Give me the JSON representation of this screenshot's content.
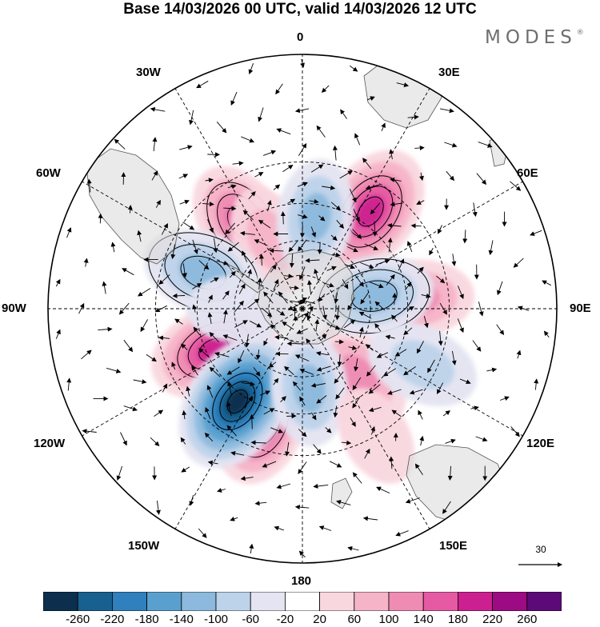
{
  "title": "Base 14/03/2026 00 UTC, valid 14/03/2026 12 UTC",
  "brand": "MODES",
  "brand_mark": "®",
  "longitude_labels": {
    "lon_0": "0",
    "lon_30e": "30E",
    "lon_60e": "60E",
    "lon_90e": "90E",
    "lon_120e": "120E",
    "lon_150e": "150E",
    "lon_180": "180",
    "lon_150w": "150W",
    "lon_120w": "120W",
    "lon_90w": "90W",
    "lon_60w": "60W",
    "lon_30w": "30W"
  },
  "vector_reference": {
    "value": "30"
  },
  "colorbar": {
    "colors": [
      "#0b2f4d",
      "#18608f",
      "#2f80bd",
      "#5aa0cf",
      "#8cb9dd",
      "#bdd3ea",
      "#e4e4f2",
      "#ffffff",
      "#f9d7df",
      "#f6b4c8",
      "#ef8cb3",
      "#e55aa2",
      "#cc2090",
      "#9c0b83",
      "#5c0a77"
    ],
    "tick_labels": [
      "-260",
      "-220",
      "-180",
      "-140",
      "-100",
      "-60",
      "-20",
      "20",
      "60",
      "100",
      "140",
      "180",
      "220",
      "260"
    ]
  },
  "anomaly_cells": [
    {
      "lon": 35,
      "lat": -40,
      "value": 210
    },
    {
      "lon": -35,
      "lat": -45,
      "value": 150
    },
    {
      "lon": -25,
      "lat": -57,
      "value": 80
    },
    {
      "lon": 85,
      "lat": -42,
      "value": 120
    },
    {
      "lon": -115,
      "lat": -48,
      "value": 190
    },
    {
      "lon": -160,
      "lat": -40,
      "value": 190
    },
    {
      "lon": 140,
      "lat": -52,
      "value": 110
    },
    {
      "lon": 8,
      "lat": -50,
      "value": -110
    },
    {
      "lon": -70,
      "lat": -45,
      "value": -140
    },
    {
      "lon": -145,
      "lat": -42,
      "value": -270
    },
    {
      "lon": 175,
      "lat": -55,
      "value": -110
    },
    {
      "lon": 80,
      "lat": -58,
      "value": -130
    },
    {
      "lon": 115,
      "lat": -35,
      "value": -100
    },
    {
      "lon": 150,
      "lat": -30,
      "value": 40
    },
    {
      "lon": -90,
      "lat": -62,
      "value": -50
    }
  ]
}
